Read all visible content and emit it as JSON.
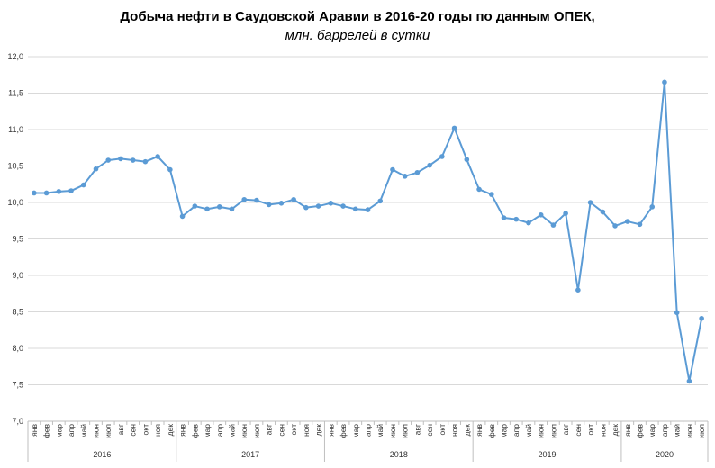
{
  "chart_data": {
    "type": "line",
    "title": "Добыча  нефти в Саудовской  Аравии  в 2016-20 годы по данным  ОПЕК,",
    "subtitle": "млн. баррелей в сутки",
    "xlabel": "",
    "ylabel": "",
    "ylim": [
      7.0,
      12.0
    ],
    "y_ticks": [
      "7,0",
      "7,5",
      "8,0",
      "8,5",
      "9,0",
      "9,5",
      "10,0",
      "10,5",
      "11,0",
      "11,5",
      "12,0"
    ],
    "grid": true,
    "line_color": "#5b9bd5",
    "month_labels": [
      "янв",
      "фев",
      "мар",
      "апр",
      "май",
      "июн",
      "июл",
      "авг",
      "сен",
      "окт",
      "ноя",
      "дек"
    ],
    "years": [
      {
        "label": "2016",
        "months": 12
      },
      {
        "label": "2017",
        "months": 12
      },
      {
        "label": "2018",
        "months": 12
      },
      {
        "label": "2019",
        "months": 12
      },
      {
        "label": "2020",
        "months": 7
      }
    ],
    "values": [
      10.13,
      10.13,
      10.15,
      10.16,
      10.24,
      10.46,
      10.58,
      10.6,
      10.58,
      10.56,
      10.63,
      10.45,
      9.81,
      9.95,
      9.91,
      9.94,
      9.91,
      10.04,
      10.03,
      9.97,
      9.99,
      10.04,
      9.93,
      9.95,
      9.99,
      9.95,
      9.91,
      9.9,
      10.02,
      10.45,
      10.36,
      10.41,
      10.51,
      10.63,
      11.02,
      10.59,
      10.18,
      10.11,
      9.79,
      9.77,
      9.72,
      9.83,
      9.69,
      9.85,
      8.8,
      10.0,
      9.87,
      9.68,
      9.74,
      9.7,
      9.94,
      11.65,
      8.49,
      7.55,
      8.41
    ]
  }
}
